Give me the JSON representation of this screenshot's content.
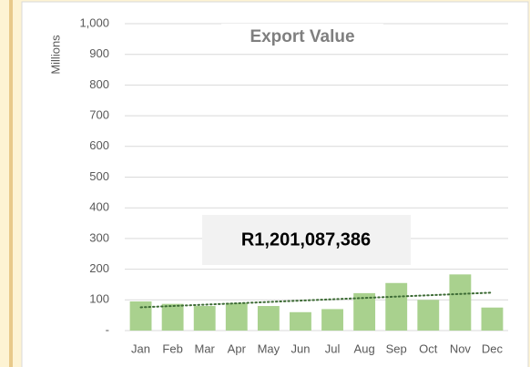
{
  "chart_data": {
    "type": "bar",
    "title": "Export Value",
    "y_label": "Millions",
    "annotation": "R1,201,087,386",
    "categories": [
      "Jan",
      "Feb",
      "Mar",
      "Apr",
      "May",
      "Jun",
      "Jul",
      "Aug",
      "Sep",
      "Oct",
      "Nov",
      "Dec"
    ],
    "values": [
      95,
      87,
      80,
      90,
      80,
      60,
      70,
      122,
      155,
      100,
      183,
      75
    ],
    "color": "#a9d18e",
    "trendline": true,
    "trendline_color": "#3d6b35",
    "ylim": [
      0,
      1000
    ],
    "yticks": [
      {
        "value": 0,
        "label": "-"
      },
      100,
      200,
      300,
      400,
      500,
      600,
      700,
      800,
      900,
      {
        "value": 1000,
        "label": "1,000"
      }
    ],
    "grid": true
  }
}
